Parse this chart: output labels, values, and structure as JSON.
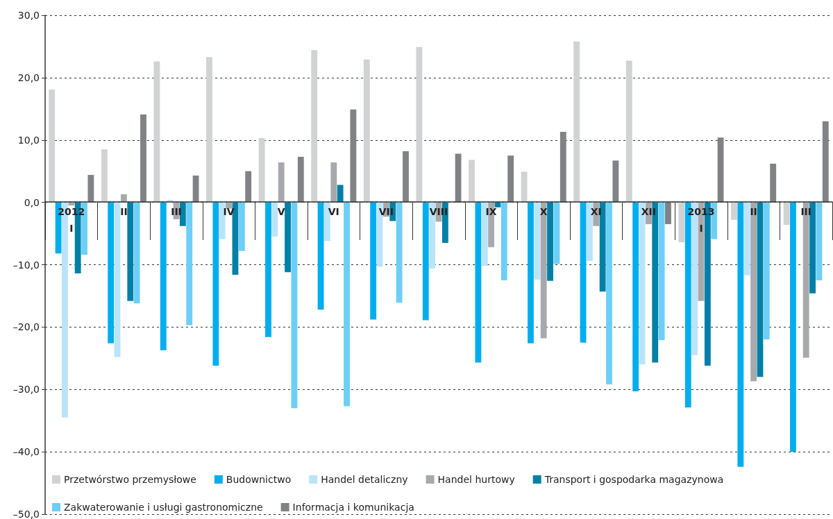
{
  "chart_data": {
    "type": "bar",
    "categories": [
      "2012\nI",
      "II",
      "III",
      "IV",
      "V",
      "VI",
      "VII",
      "VIII",
      "IX",
      "X",
      "XI",
      "XII",
      "2013\nI",
      "II",
      "III"
    ],
    "series": [
      {
        "name": "Przetwórstwo przemysłowe",
        "color": "#d1d2d4",
        "values": [
          18.1,
          8.5,
          22.6,
          23.3,
          10.3,
          24.4,
          22.9,
          24.9,
          6.8,
          4.9,
          25.8,
          22.7,
          -6.4,
          -2.8,
          -3.6
        ]
      },
      {
        "name": "Budownictwo",
        "color": "#00aeef",
        "values": [
          -8.2,
          -22.6,
          -23.7,
          -26.2,
          -21.6,
          -17.2,
          -18.8,
          -18.9,
          -25.7,
          -22.6,
          -22.5,
          -30.3,
          -32.9,
          -42.4,
          -40.0
        ]
      },
      {
        "name": "Handel detaliczny",
        "color": "#bae4f9",
        "values": [
          -34.5,
          -24.8,
          0.4,
          -5.9,
          -5.5,
          -6.2,
          -10.3,
          -10.6,
          -10.2,
          -12.4,
          -9.4,
          -26.0,
          -24.5,
          -11.7,
          null
        ]
      },
      {
        "name": "Handel hurtowy",
        "color": "#a7a9ac",
        "values": [
          -0.5,
          1.3,
          -2.7,
          -1.0,
          6.4,
          6.4,
          -2.3,
          -3.1,
          -7.2,
          -21.8,
          -3.8,
          -3.5,
          -15.8,
          -28.7,
          -24.9
        ]
      },
      {
        "name": "Transport i gospodarka magazynowa",
        "color": "#0080a6",
        "values": [
          -11.4,
          -15.8,
          -3.8,
          -11.6,
          -11.2,
          2.8,
          -3.0,
          -6.5,
          -0.8,
          -12.6,
          -14.3,
          -25.7,
          -26.2,
          -28.0,
          -14.6
        ]
      },
      {
        "name": "Zakwaterowanie i usługi gastronomiczne",
        "color": "#6dcff6",
        "values": [
          -8.4,
          -16.2,
          -19.7,
          -7.8,
          -33.0,
          -32.7,
          -16.1,
          null,
          -12.5,
          -9.9,
          -29.2,
          -22.1,
          -5.9,
          -22.0,
          -12.5
        ]
      },
      {
        "name": "Informacja i komunikacja",
        "color": "#808285",
        "values": [
          4.4,
          14.1,
          4.3,
          5.0,
          7.3,
          14.9,
          8.2,
          7.8,
          7.5,
          11.3,
          6.7,
          -3.5,
          10.4,
          6.2,
          13.0
        ]
      }
    ],
    "ylim": [
      -50,
      30
    ],
    "yticks": [
      {
        "value": -50,
        "label": "–50,0"
      },
      {
        "value": -40,
        "label": "–40,0"
      },
      {
        "value": -30,
        "label": "–30,0"
      },
      {
        "value": -20,
        "label": "–20,0"
      },
      {
        "value": -10,
        "label": "–10,0"
      },
      {
        "value": 0,
        "label": "0,0"
      },
      {
        "value": 10,
        "label": "10,0"
      },
      {
        "value": 20,
        "label": "20,0"
      },
      {
        "value": 30,
        "label": "30,0"
      }
    ],
    "grid": "y",
    "legend": "bottom"
  }
}
